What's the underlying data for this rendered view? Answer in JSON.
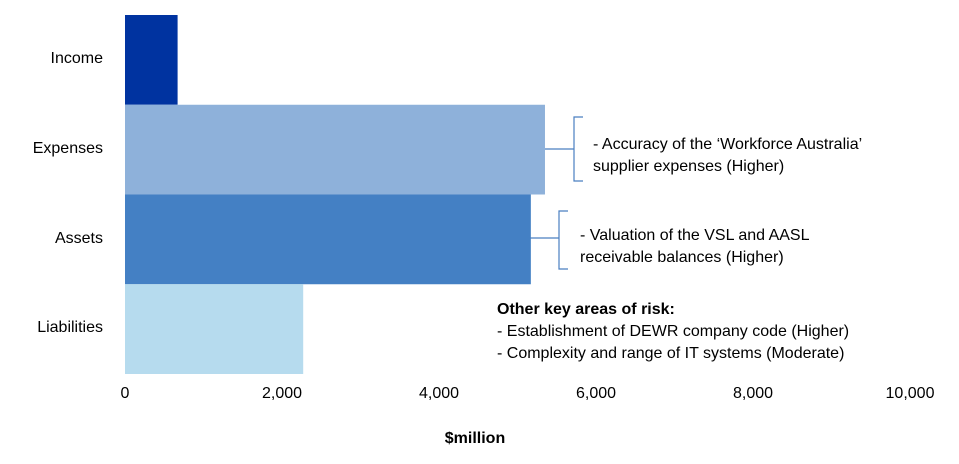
{
  "chart_data": {
    "type": "bar",
    "orientation": "horizontal",
    "categories": [
      "Income",
      "Expenses",
      "Assets",
      "Liabilities"
    ],
    "values": [
      670,
      5350,
      5170,
      2270
    ],
    "colors": [
      "#0033a0",
      "#8eb1da",
      "#4480c4",
      "#b6dbee"
    ],
    "xlabel": "$million",
    "xlim": [
      0,
      10000
    ],
    "xticks": [
      "0",
      "2,000",
      "4,000",
      "6,000",
      "8,000",
      "10,000"
    ],
    "grid": false,
    "annotations": {
      "expenses": [
        "- Accuracy of the ‘Workforce Australia’",
        "supplier expenses (Higher)"
      ],
      "assets": [
        "- Valuation of the VSL and AASL",
        "receivable balances (Higher)"
      ],
      "other_heading": "Other key areas of risk:",
      "other_items": [
        "- Establishment of DEWR company code (Higher)",
        "- Complexity and range of IT systems (Moderate)"
      ]
    }
  }
}
